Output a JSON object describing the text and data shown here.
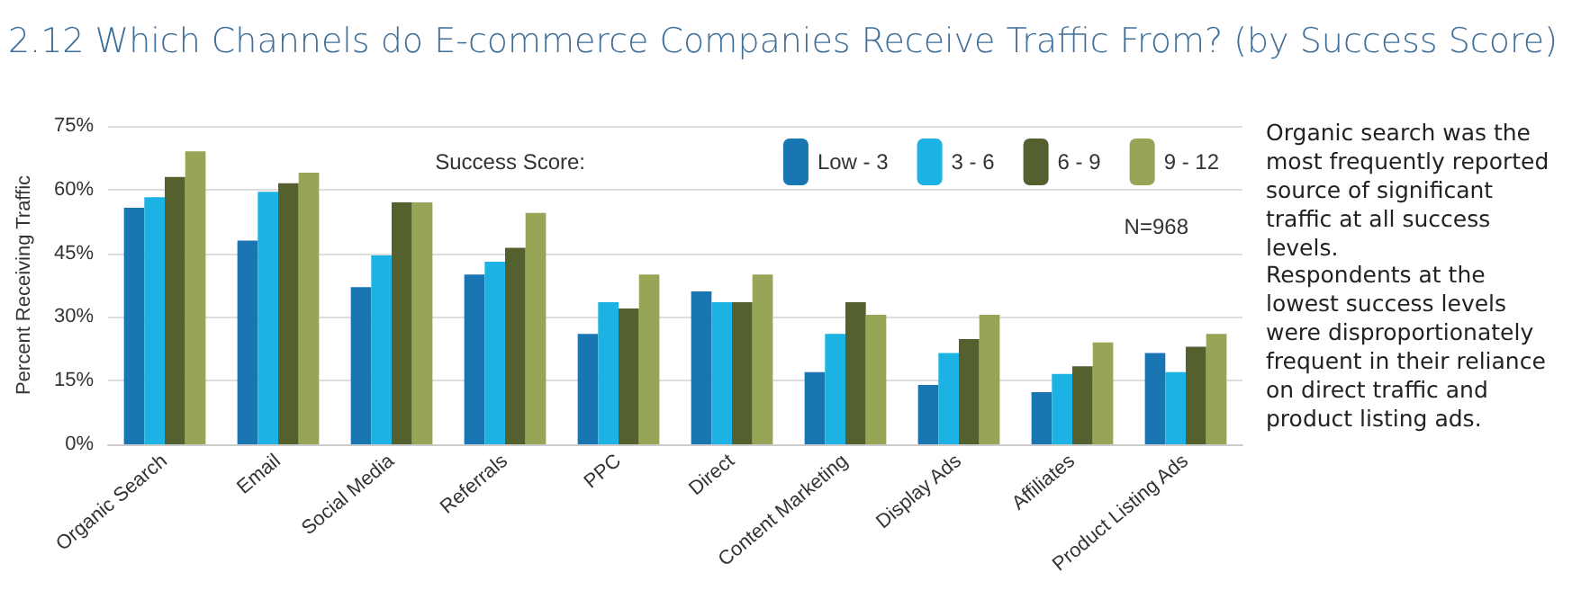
{
  "chart_data": {
    "type": "bar",
    "title": "2.12 Which Channels do E-commerce Companies Receive Traffic From? (by Success Score)",
    "ylabel": "Percent Receiving Traffic",
    "legend_title": "Success Score:",
    "categories": [
      "Organic Search",
      "Email",
      "Social Media",
      "Referrals",
      "PPC",
      "Direct",
      "Content Marketing",
      "Display Ads",
      "Affiliates",
      "Product Listing Ads"
    ],
    "series": [
      {
        "name": "Low - 3",
        "color": "#1a75b3",
        "values": [
          55.7,
          48,
          37,
          40,
          26,
          36,
          17,
          14,
          12.3,
          21.5
        ]
      },
      {
        "name": "3 - 6",
        "color": "#1cb2e3",
        "values": [
          58.2,
          59.5,
          44.5,
          43,
          33.5,
          33.5,
          26,
          21.5,
          16.6,
          17
        ]
      },
      {
        "name": "6 - 9",
        "color": "#55602f",
        "values": [
          63,
          61.5,
          57,
          46.3,
          32,
          33.5,
          33.5,
          24.8,
          18.4,
          23
        ]
      },
      {
        "name": "9 - 12",
        "color": "#97a556",
        "values": [
          69,
          64,
          57,
          54.5,
          40,
          40,
          30.5,
          30.5,
          24,
          26
        ]
      }
    ],
    "ylim": [
      0,
      75
    ],
    "yticks": [
      {
        "value": 0,
        "label": "0%"
      },
      {
        "value": 15,
        "label": "15%"
      },
      {
        "value": 30,
        "label": "30%"
      },
      {
        "value": 45,
        "label": "45%"
      },
      {
        "value": 60,
        "label": "60%"
      },
      {
        "value": 75,
        "label": "75%"
      }
    ],
    "grid": "y",
    "legend": "top right",
    "annotations": [
      "N=968",
      "Organic search was the most frequently reported source of significant traffic at all success levels.",
      "Respondents at the lowest success levels were disproportionately frequent in their reliance on direct traffic and product listing ads."
    ]
  }
}
